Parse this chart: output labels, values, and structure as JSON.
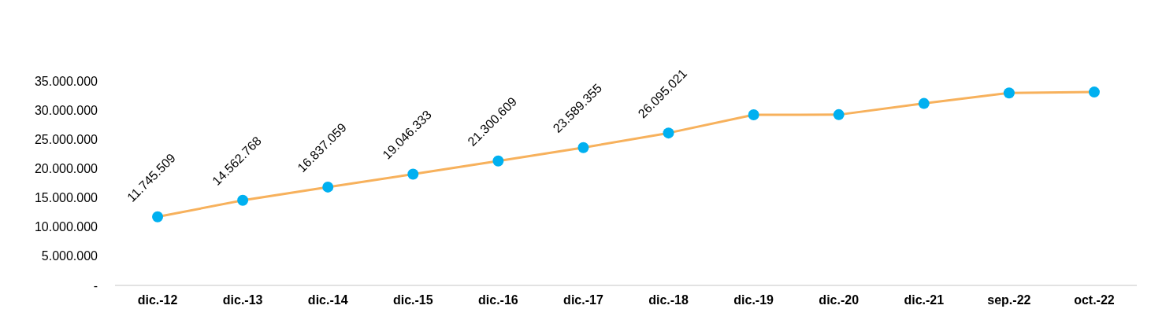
{
  "chart_data": {
    "type": "line",
    "categories": [
      "dic.-12",
      "dic.-13",
      "dic.-14",
      "dic.-15",
      "dic.-16",
      "dic.-17",
      "dic.-18",
      "dic.-19",
      "dic.-20",
      "dic.-21",
      "sep.-22",
      "oct.-22"
    ],
    "series": [
      {
        "color": "#f7b15c",
        "values": [
          11745509,
          14562768,
          16837059,
          19046333,
          21300609,
          23589355,
          26095021,
          29220000,
          29230000,
          31150000,
          32950000,
          33100000
        ],
        "value_labels": [
          "11.745.509",
          "14.562.768",
          "16.837.059",
          "19.046.333",
          "21.300.609",
          "23.589.355",
          "26.095.021",
          null,
          null,
          null,
          null,
          null
        ]
      }
    ],
    "marker": "circle",
    "ylim": [
      0,
      35000000
    ],
    "yticks": [
      {
        "value": 0,
        "label": "-"
      },
      {
        "value": 5000000,
        "label": "5.000.000"
      },
      {
        "value": 10000000,
        "label": "10.000.000"
      },
      {
        "value": 15000000,
        "label": "15.000.000"
      },
      {
        "value": 20000000,
        "label": "20.000.000"
      },
      {
        "value": 25000000,
        "label": "25.000.000"
      },
      {
        "value": 30000000,
        "label": "30.000.000"
      },
      {
        "value": 35000000,
        "label": "35.000.000"
      }
    ],
    "grid": false
  }
}
